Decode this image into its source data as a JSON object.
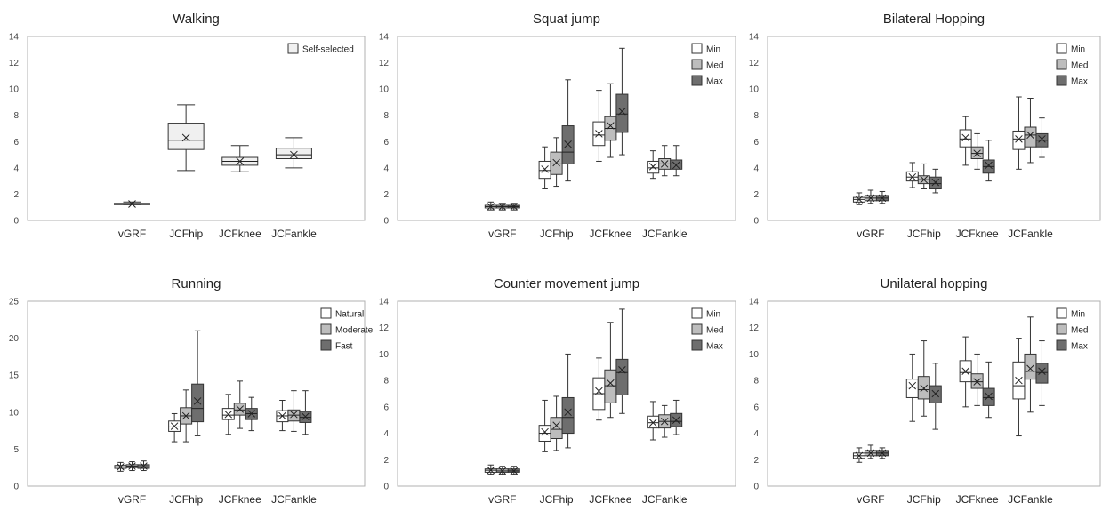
{
  "chart_data": [
    {
      "type": "box",
      "title": "Walking",
      "categories": [
        "vGRF",
        "JCFhip",
        "JCFknee",
        "JCFankle"
      ],
      "ylim": [
        0,
        14
      ],
      "yticks": [
        0,
        2,
        4,
        6,
        8,
        10,
        12,
        14
      ],
      "legend_position": "top-right",
      "series": [
        {
          "name": "Self-selected",
          "color": "#f0f0f0",
          "boxes": [
            {
              "min": 1.2,
              "q1": 1.2,
              "median": 1.25,
              "q3": 1.3,
              "max": 1.4,
              "mean": 1.25
            },
            {
              "min": 3.8,
              "q1": 5.4,
              "median": 6.1,
              "q3": 7.4,
              "max": 8.8,
              "mean": 6.3
            },
            {
              "min": 3.7,
              "q1": 4.2,
              "median": 4.5,
              "q3": 4.8,
              "max": 5.7,
              "mean": 4.5
            },
            {
              "min": 4.0,
              "q1": 4.7,
              "median": 5.0,
              "q3": 5.5,
              "max": 6.3,
              "mean": 5.0
            }
          ]
        }
      ]
    },
    {
      "type": "box",
      "title": "Squat jump",
      "categories": [
        "vGRF",
        "JCFhip",
        "JCFknee",
        "JCFankle"
      ],
      "ylim": [
        0,
        14
      ],
      "yticks": [
        0,
        2,
        4,
        6,
        8,
        10,
        12,
        14
      ],
      "legend_position": "top-right",
      "series": [
        {
          "name": "Min",
          "color": "#ffffff",
          "boxes": [
            {
              "min": 0.8,
              "q1": 0.95,
              "median": 1.05,
              "q3": 1.15,
              "max": 1.4,
              "mean": 1.05
            },
            {
              "min": 2.4,
              "q1": 3.2,
              "median": 3.8,
              "q3": 4.5,
              "max": 5.6,
              "mean": 3.9
            },
            {
              "min": 4.5,
              "q1": 5.7,
              "median": 6.5,
              "q3": 7.5,
              "max": 9.9,
              "mean": 6.6
            },
            {
              "min": 3.2,
              "q1": 3.6,
              "median": 4.0,
              "q3": 4.5,
              "max": 5.3,
              "mean": 4.1
            }
          ]
        },
        {
          "name": "Med",
          "color": "#bdbdbd",
          "boxes": [
            {
              "min": 0.8,
              "q1": 0.95,
              "median": 1.05,
              "q3": 1.15,
              "max": 1.3,
              "mean": 1.05
            },
            {
              "min": 2.6,
              "q1": 3.5,
              "median": 4.3,
              "q3": 5.2,
              "max": 6.3,
              "mean": 4.4
            },
            {
              "min": 4.8,
              "q1": 6.1,
              "median": 7.0,
              "q3": 7.9,
              "max": 10.4,
              "mean": 7.2
            },
            {
              "min": 3.4,
              "q1": 3.9,
              "median": 4.3,
              "q3": 4.7,
              "max": 5.7,
              "mean": 4.3
            }
          ]
        },
        {
          "name": "Max",
          "color": "#6e6e6e",
          "boxes": [
            {
              "min": 0.8,
              "q1": 0.95,
              "median": 1.05,
              "q3": 1.15,
              "max": 1.3,
              "mean": 1.05
            },
            {
              "min": 3.0,
              "q1": 4.3,
              "median": 5.2,
              "q3": 7.2,
              "max": 10.7,
              "mean": 5.8
            },
            {
              "min": 5.0,
              "q1": 6.7,
              "median": 8.1,
              "q3": 9.6,
              "max": 13.1,
              "mean": 8.3
            },
            {
              "min": 3.4,
              "q1": 3.9,
              "median": 4.3,
              "q3": 4.6,
              "max": 5.7,
              "mean": 4.2
            }
          ]
        }
      ]
    },
    {
      "type": "box",
      "title": "Bilateral Hopping",
      "categories": [
        "vGRF",
        "JCFhip",
        "JCFknee",
        "JCFankle"
      ],
      "ylim": [
        0,
        14
      ],
      "yticks": [
        0,
        2,
        4,
        6,
        8,
        10,
        12,
        14
      ],
      "legend_position": "top-right",
      "series": [
        {
          "name": "Min",
          "color": "#ffffff",
          "boxes": [
            {
              "min": 1.2,
              "q1": 1.4,
              "median": 1.6,
              "q3": 1.75,
              "max": 2.1,
              "mean": 1.6
            },
            {
              "min": 2.5,
              "q1": 3.0,
              "median": 3.3,
              "q3": 3.7,
              "max": 4.4,
              "mean": 3.3
            },
            {
              "min": 4.2,
              "q1": 5.6,
              "median": 6.2,
              "q3": 6.9,
              "max": 7.9,
              "mean": 6.3
            },
            {
              "min": 3.9,
              "q1": 5.4,
              "median": 6.2,
              "q3": 6.8,
              "max": 9.4,
              "mean": 6.2
            }
          ]
        },
        {
          "name": "Med",
          "color": "#bdbdbd",
          "boxes": [
            {
              "min": 1.3,
              "q1": 1.5,
              "median": 1.7,
              "q3": 1.9,
              "max": 2.3,
              "mean": 1.7
            },
            {
              "min": 2.4,
              "q1": 2.8,
              "median": 3.1,
              "q3": 3.4,
              "max": 4.3,
              "mean": 3.1
            },
            {
              "min": 3.9,
              "q1": 4.7,
              "median": 5.1,
              "q3": 5.6,
              "max": 6.6,
              "mean": 5.1
            },
            {
              "min": 4.4,
              "q1": 5.6,
              "median": 6.5,
              "q3": 7.1,
              "max": 9.3,
              "mean": 6.5
            }
          ]
        },
        {
          "name": "Max",
          "color": "#6e6e6e",
          "boxes": [
            {
              "min": 1.3,
              "q1": 1.5,
              "median": 1.7,
              "q3": 1.9,
              "max": 2.2,
              "mean": 1.7
            },
            {
              "min": 2.1,
              "q1": 2.4,
              "median": 2.8,
              "q3": 3.3,
              "max": 3.9,
              "mean": 2.9
            },
            {
              "min": 3.0,
              "q1": 3.6,
              "median": 4.1,
              "q3": 4.6,
              "max": 6.1,
              "mean": 4.2
            },
            {
              "min": 4.8,
              "q1": 5.6,
              "median": 6.1,
              "q3": 6.6,
              "max": 7.8,
              "mean": 6.2
            }
          ]
        }
      ]
    },
    {
      "type": "box",
      "title": "Running",
      "categories": [
        "vGRF",
        "JCFhip",
        "JCFknee",
        "JCFankle"
      ],
      "ylim": [
        0,
        25
      ],
      "yticks": [
        0,
        5,
        10,
        15,
        20,
        25
      ],
      "legend_position": "top-right",
      "series": [
        {
          "name": "Natural",
          "color": "#ffffff",
          "boxes": [
            {
              "min": 2.0,
              "q1": 2.4,
              "median": 2.6,
              "q3": 2.8,
              "max": 3.2,
              "mean": 2.6
            },
            {
              "min": 6.0,
              "q1": 7.4,
              "median": 8.0,
              "q3": 8.8,
              "max": 9.8,
              "mean": 8.1
            },
            {
              "min": 7.0,
              "q1": 9.0,
              "median": 9.6,
              "q3": 10.5,
              "max": 12.4,
              "mean": 9.7
            },
            {
              "min": 7.5,
              "q1": 8.7,
              "median": 9.5,
              "q3": 10.2,
              "max": 11.6,
              "mean": 9.5
            }
          ]
        },
        {
          "name": "Moderate",
          "color": "#bdbdbd",
          "boxes": [
            {
              "min": 2.1,
              "q1": 2.5,
              "median": 2.7,
              "q3": 2.9,
              "max": 3.3,
              "mean": 2.7
            },
            {
              "min": 6.0,
              "q1": 8.4,
              "median": 9.5,
              "q3": 10.6,
              "max": 13.0,
              "mean": 9.5
            },
            {
              "min": 7.8,
              "q1": 9.6,
              "median": 10.3,
              "q3": 11.2,
              "max": 14.2,
              "mean": 10.4
            },
            {
              "min": 7.4,
              "q1": 8.8,
              "median": 9.6,
              "q3": 10.3,
              "max": 12.9,
              "mean": 9.7
            }
          ]
        },
        {
          "name": "Fast",
          "color": "#6e6e6e",
          "boxes": [
            {
              "min": 2.1,
              "q1": 2.4,
              "median": 2.6,
              "q3": 2.9,
              "max": 3.4,
              "mean": 2.7
            },
            {
              "min": 6.8,
              "q1": 8.7,
              "median": 10.5,
              "q3": 13.8,
              "max": 21.0,
              "mean": 11.5
            },
            {
              "min": 7.5,
              "q1": 9.0,
              "median": 9.8,
              "q3": 10.5,
              "max": 12.0,
              "mean": 9.8
            },
            {
              "min": 7.0,
              "q1": 8.6,
              "median": 9.3,
              "q3": 10.1,
              "max": 12.9,
              "mean": 9.4
            }
          ]
        }
      ]
    },
    {
      "type": "box",
      "title": "Counter movement jump",
      "categories": [
        "vGRF",
        "JCFhip",
        "JCFknee",
        "JCFankle"
      ],
      "ylim": [
        0,
        14
      ],
      "yticks": [
        0,
        2,
        4,
        6,
        8,
        10,
        12,
        14
      ],
      "legend_position": "top-right",
      "series": [
        {
          "name": "Min",
          "color": "#ffffff",
          "boxes": [
            {
              "min": 0.9,
              "q1": 1.05,
              "median": 1.2,
              "q3": 1.3,
              "max": 1.6,
              "mean": 1.2
            },
            {
              "min": 2.6,
              "q1": 3.4,
              "median": 4.0,
              "q3": 4.6,
              "max": 6.5,
              "mean": 4.1
            },
            {
              "min": 5.0,
              "q1": 5.8,
              "median": 7.0,
              "q3": 8.2,
              "max": 9.7,
              "mean": 7.2
            },
            {
              "min": 3.5,
              "q1": 4.4,
              "median": 4.8,
              "q3": 5.3,
              "max": 6.4,
              "mean": 4.8
            }
          ]
        },
        {
          "name": "Med",
          "color": "#bdbdbd",
          "boxes": [
            {
              "min": 0.9,
              "q1": 1.05,
              "median": 1.15,
              "q3": 1.3,
              "max": 1.5,
              "mean": 1.15
            },
            {
              "min": 2.7,
              "q1": 3.6,
              "median": 4.3,
              "q3": 5.2,
              "max": 6.8,
              "mean": 4.6
            },
            {
              "min": 5.2,
              "q1": 6.3,
              "median": 7.6,
              "q3": 8.8,
              "max": 12.4,
              "mean": 7.8
            },
            {
              "min": 3.7,
              "q1": 4.4,
              "median": 4.9,
              "q3": 5.4,
              "max": 6.1,
              "mean": 4.9
            }
          ]
        },
        {
          "name": "Max",
          "color": "#6e6e6e",
          "boxes": [
            {
              "min": 0.9,
              "q1": 1.05,
              "median": 1.15,
              "q3": 1.3,
              "max": 1.5,
              "mean": 1.15
            },
            {
              "min": 2.9,
              "q1": 4.0,
              "median": 5.2,
              "q3": 6.7,
              "max": 10.0,
              "mean": 5.6
            },
            {
              "min": 5.5,
              "q1": 6.9,
              "median": 8.6,
              "q3": 9.6,
              "max": 13.4,
              "mean": 8.8
            },
            {
              "min": 3.9,
              "q1": 4.5,
              "median": 4.9,
              "q3": 5.5,
              "max": 6.5,
              "mean": 5.0
            }
          ]
        }
      ]
    },
    {
      "type": "box",
      "title": "Unilateral hopping",
      "categories": [
        "vGRF",
        "JCFhip",
        "JCFknee",
        "JCFankle"
      ],
      "ylim": [
        0,
        14
      ],
      "yticks": [
        0,
        2,
        4,
        6,
        8,
        10,
        12,
        14
      ],
      "legend_position": "top-right",
      "series": [
        {
          "name": "Min",
          "color": "#ffffff",
          "boxes": [
            {
              "min": 1.8,
              "q1": 2.1,
              "median": 2.3,
              "q3": 2.5,
              "max": 2.9,
              "mean": 2.3
            },
            {
              "min": 4.9,
              "q1": 6.7,
              "median": 7.5,
              "q3": 8.1,
              "max": 10.0,
              "mean": 7.6
            },
            {
              "min": 6.0,
              "q1": 7.9,
              "median": 8.6,
              "q3": 9.5,
              "max": 11.3,
              "mean": 8.7
            },
            {
              "min": 3.8,
              "q1": 6.6,
              "median": 7.6,
              "q3": 9.4,
              "max": 11.2,
              "mean": 8.0
            }
          ]
        },
        {
          "name": "Med",
          "color": "#bdbdbd",
          "boxes": [
            {
              "min": 2.1,
              "q1": 2.3,
              "median": 2.5,
              "q3": 2.7,
              "max": 3.1,
              "mean": 2.5
            },
            {
              "min": 5.3,
              "q1": 6.6,
              "median": 7.3,
              "q3": 8.3,
              "max": 11.0,
              "mean": 7.4
            },
            {
              "min": 6.1,
              "q1": 7.4,
              "median": 7.9,
              "q3": 8.5,
              "max": 10.0,
              "mean": 7.9
            },
            {
              "min": 5.6,
              "q1": 8.1,
              "median": 8.7,
              "q3": 10.0,
              "max": 12.8,
              "mean": 8.9
            }
          ]
        },
        {
          "name": "Max",
          "color": "#6e6e6e",
          "boxes": [
            {
              "min": 2.1,
              "q1": 2.3,
              "median": 2.5,
              "q3": 2.7,
              "max": 2.9,
              "mean": 2.5
            },
            {
              "min": 4.3,
              "q1": 6.3,
              "median": 6.9,
              "q3": 7.6,
              "max": 9.3,
              "mean": 7.0
            },
            {
              "min": 5.2,
              "q1": 6.1,
              "median": 6.7,
              "q3": 7.4,
              "max": 9.4,
              "mean": 6.8
            },
            {
              "min": 6.1,
              "q1": 7.8,
              "median": 8.6,
              "q3": 9.3,
              "max": 11.0,
              "mean": 8.7
            }
          ]
        }
      ]
    }
  ]
}
